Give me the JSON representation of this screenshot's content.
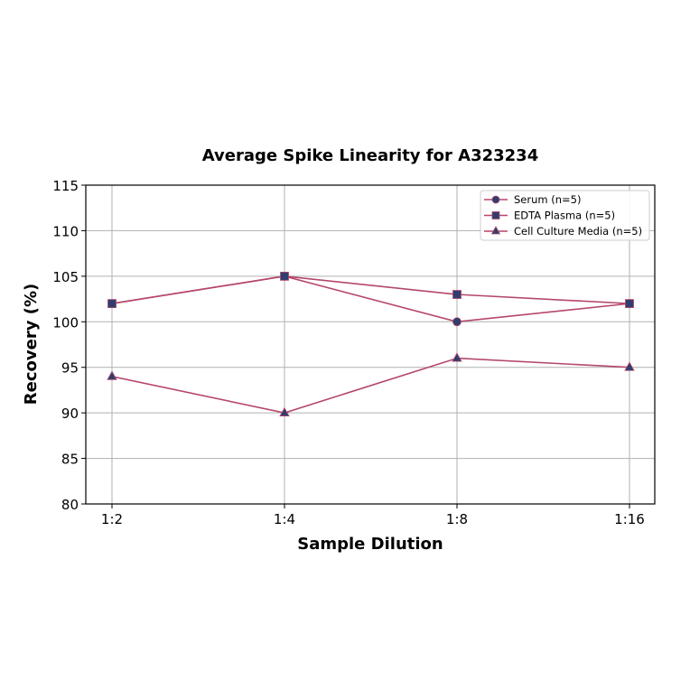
{
  "chart_data": {
    "type": "line",
    "title": "Average Spike Linearity for A323234",
    "xlabel": "Sample Dilution",
    "ylabel": "Recovery (%)",
    "categories": [
      "1:2",
      "1:4",
      "1:8",
      "1:16"
    ],
    "ylim": [
      80,
      115
    ],
    "yticks": [
      80,
      85,
      90,
      95,
      100,
      105,
      110,
      115
    ],
    "grid": true,
    "legend_position": "upper right",
    "line_color": "#b5476b",
    "marker_color": "#2e3f6e",
    "series": [
      {
        "name": "Serum (n=5)",
        "marker": "circle",
        "values": [
          102,
          105,
          100,
          102
        ]
      },
      {
        "name": "EDTA Plasma (n=5)",
        "marker": "square",
        "values": [
          102,
          105,
          103,
          102
        ]
      },
      {
        "name": "Cell Culture Media (n=5)",
        "marker": "triangle",
        "values": [
          94,
          90,
          96,
          95
        ]
      }
    ]
  }
}
